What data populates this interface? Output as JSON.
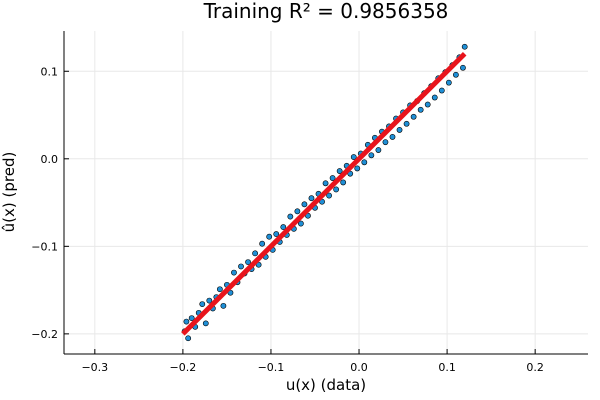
{
  "chart_data": {
    "type": "scatter",
    "title": "Training R² = 0.9856358",
    "xlabel": "u(x) (data)",
    "ylabel": "û(x) (pred)",
    "xlim": [
      -0.335,
      0.26
    ],
    "ylim": [
      -0.223,
      0.146
    ],
    "x_ticks": [
      -0.3,
      -0.2,
      -0.1,
      0.0,
      0.1,
      0.2
    ],
    "x_tick_labels": [
      "−0.3",
      "−0.2",
      "−0.1",
      "0.0",
      "0.1",
      "0.2"
    ],
    "y_ticks": [
      -0.2,
      -0.1,
      0.0,
      0.1
    ],
    "y_tick_labels": [
      "−0.2",
      "−0.1",
      "0.0",
      "0.1"
    ],
    "grid": true,
    "legend": false,
    "colors": {
      "points": "#1f8fd6",
      "point_edge": "#000000",
      "fit_line": "#e8141c"
    },
    "series": [
      {
        "kind": "scatter",
        "x": [
          -0.198,
          -0.196,
          -0.194,
          -0.19,
          -0.186,
          -0.182,
          -0.178,
          -0.174,
          -0.17,
          -0.166,
          -0.162,
          -0.158,
          -0.154,
          -0.15,
          -0.146,
          -0.142,
          -0.138,
          -0.134,
          -0.13,
          -0.126,
          -0.122,
          -0.118,
          -0.114,
          -0.11,
          -0.106,
          -0.102,
          -0.098,
          -0.094,
          -0.09,
          -0.086,
          -0.082,
          -0.078,
          -0.074,
          -0.07,
          -0.066,
          -0.062,
          -0.058,
          -0.054,
          -0.05,
          -0.046,
          -0.042,
          -0.038,
          -0.034,
          -0.03,
          -0.026,
          -0.022,
          -0.018,
          -0.014,
          -0.01,
          -0.006,
          -0.002,
          0.002,
          0.006,
          0.01,
          0.014,
          0.018,
          0.022,
          0.026,
          0.03,
          0.034,
          0.038,
          0.042,
          0.046,
          0.05,
          0.054,
          0.058,
          0.062,
          0.066,
          0.07,
          0.074,
          0.078,
          0.082,
          0.086,
          0.09,
          0.094,
          0.098,
          0.102,
          0.106,
          0.11,
          0.114,
          0.118,
          0.12
        ],
        "y": [
          -0.197,
          -0.186,
          -0.205,
          -0.182,
          -0.192,
          -0.176,
          -0.166,
          -0.188,
          -0.162,
          -0.171,
          -0.158,
          -0.149,
          -0.168,
          -0.144,
          -0.153,
          -0.13,
          -0.141,
          -0.123,
          -0.131,
          -0.118,
          -0.126,
          -0.108,
          -0.121,
          -0.097,
          -0.112,
          -0.089,
          -0.104,
          -0.086,
          -0.095,
          -0.078,
          -0.087,
          -0.066,
          -0.08,
          -0.06,
          -0.074,
          -0.052,
          -0.065,
          -0.045,
          -0.056,
          -0.04,
          -0.049,
          -0.028,
          -0.042,
          -0.022,
          -0.035,
          -0.014,
          -0.027,
          -0.008,
          -0.017,
          0.002,
          -0.011,
          0.006,
          -0.004,
          0.016,
          0.004,
          0.024,
          0.01,
          0.031,
          0.019,
          0.037,
          0.025,
          0.046,
          0.033,
          0.053,
          0.04,
          0.061,
          0.048,
          0.066,
          0.056,
          0.075,
          0.062,
          0.083,
          0.07,
          0.092,
          0.078,
          0.099,
          0.087,
          0.107,
          0.096,
          0.116,
          0.104,
          0.128
        ]
      },
      {
        "kind": "line",
        "x": [
          -0.2,
          0.12
        ],
        "y": [
          -0.2,
          0.12
        ]
      }
    ]
  }
}
